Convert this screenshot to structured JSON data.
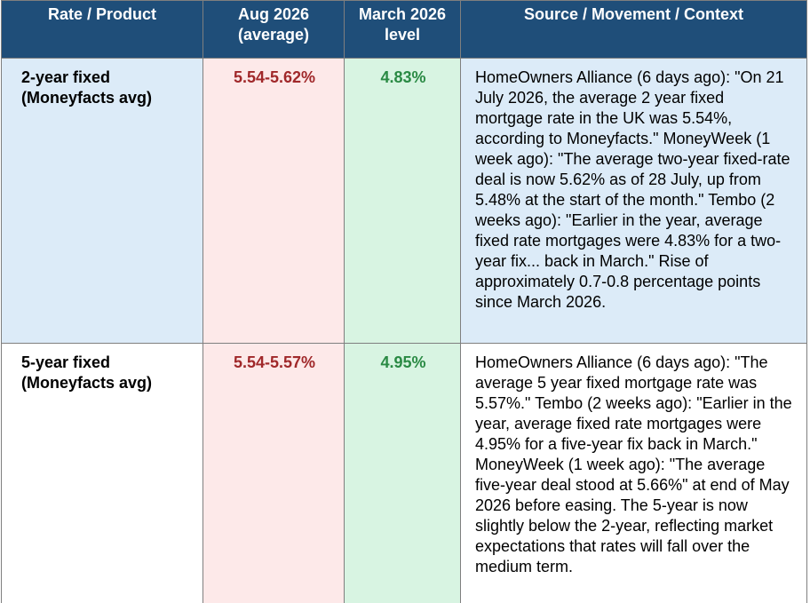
{
  "table": {
    "header": [
      "Rate / Product",
      "Aug 2026 (average)",
      "March 2026 level",
      "Source / Movement / Context"
    ],
    "rows": [
      [
        "2-year fixed (Moneyfacts avg)",
        "5.54-5.62%",
        "4.83%",
        "HomeOwners Alliance (6 days ago): \"On 21 July 2026, the average 2 year fixed mortgage rate in the UK was 5.54%, according to Moneyfacts.\" MoneyWeek (1 week ago): \"The average two-year fixed-rate deal is now 5.62% as of 28 July, up from 5.48% at the start of the month.\" Tembo (2 weeks ago): \"Earlier in the year, average fixed rate mortgages were 4.83% for a two-year fix... back in March.\" Rise of approximately 0.7-0.8 percentage points since March 2026."
      ],
      [
        "5-year fixed (Moneyfacts avg)",
        "5.54-5.57%",
        "4.95%",
        "HomeOwners Alliance (6 days ago): \"The average 5 year fixed mortgage rate was 5.57%.\" Tembo (2 weeks ago): \"Earlier in the year, average fixed rate mortgages were 4.95% for a five-year fix back in March.\" MoneyWeek (1 week ago): \"The average five-year deal stood at 5.66%\" at end of May 2026 before easing. The 5-year is now slightly below the 2-year, reflecting market expectations that rates will fall over the medium term."
      ]
    ]
  }
}
